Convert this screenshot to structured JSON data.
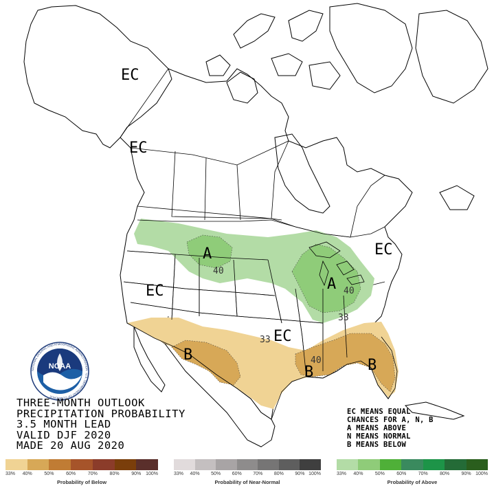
{
  "map": {
    "region_labels": [
      {
        "id": "alaska",
        "text": "EC"
      },
      {
        "id": "bc-coast",
        "text": "EC"
      },
      {
        "id": "west",
        "text": "EC"
      },
      {
        "id": "northeast",
        "text": "EC"
      },
      {
        "id": "south-central",
        "text": "EC"
      },
      {
        "id": "northern-plains",
        "text": "A"
      },
      {
        "id": "great-lakes",
        "text": "A"
      },
      {
        "id": "southwest",
        "text": "B"
      },
      {
        "id": "gulf-coast",
        "text": "B"
      },
      {
        "id": "florida",
        "text": "B"
      }
    ],
    "contour_labels": [
      {
        "id": "plains-40",
        "text": "40"
      },
      {
        "id": "lakes-40",
        "text": "40"
      },
      {
        "id": "ohio-33",
        "text": "33"
      },
      {
        "id": "texas-33",
        "text": "33"
      },
      {
        "id": "gulf-40",
        "text": "40"
      }
    ],
    "colors": {
      "above_33": "#b3dca6",
      "above_40": "#8fcc79",
      "below_33": "#f0d394",
      "below_40": "#d7a857",
      "border": "#000000"
    }
  },
  "title": {
    "line1": "THREE-MONTH OUTLOOK",
    "line2": "PRECIPITATION PROBABILITY",
    "line3": "3.5 MONTH LEAD",
    "line4": "VALID DJF 2020",
    "line5": "MADE 20 AUG 2020"
  },
  "legend_note": {
    "line1": "EC MEANS EQUAL",
    "line2": "CHANCES FOR A, N, B",
    "line3": "A MEANS ABOVE",
    "line4": "N MEANS NORMAL",
    "line5": "B MEANS BELOW"
  },
  "logo": {
    "text": "NOAA",
    "ring_text": "NATIONAL OCEANIC AND ATMOSPHERIC ADMINISTRATION · U.S. DEPARTMENT OF COMMERCE"
  },
  "legend_bars": {
    "below": {
      "title": "Probability of Below",
      "ticks": [
        "33%",
        "40%",
        "50%",
        "60%",
        "70%",
        "80%",
        "90%",
        "100%"
      ],
      "colors": [
        "#f0d394",
        "#d7a857",
        "#c07c34",
        "#a6542a",
        "#8b3c2a",
        "#7a3e0b",
        "#5a2f2b"
      ]
    },
    "normal": {
      "title": "Probability of Near-Normal",
      "ticks": [
        "33%",
        "40%",
        "50%",
        "60%",
        "70%",
        "80%",
        "90%",
        "100%"
      ],
      "colors": [
        "#e1dbdc",
        "#c4bfc0",
        "#a8a4a5",
        "#8e8c8c",
        "#767575",
        "#5e5e5e",
        "#3f3f3f"
      ]
    },
    "above": {
      "title": "Probability of Above",
      "ticks": [
        "33%",
        "40%",
        "50%",
        "60%",
        "70%",
        "80%",
        "90%",
        "100%"
      ],
      "colors": [
        "#b3dca6",
        "#8fcc79",
        "#4fb038",
        "#3a8a5e",
        "#1d9448",
        "#246b37",
        "#2a5e1d"
      ]
    }
  }
}
